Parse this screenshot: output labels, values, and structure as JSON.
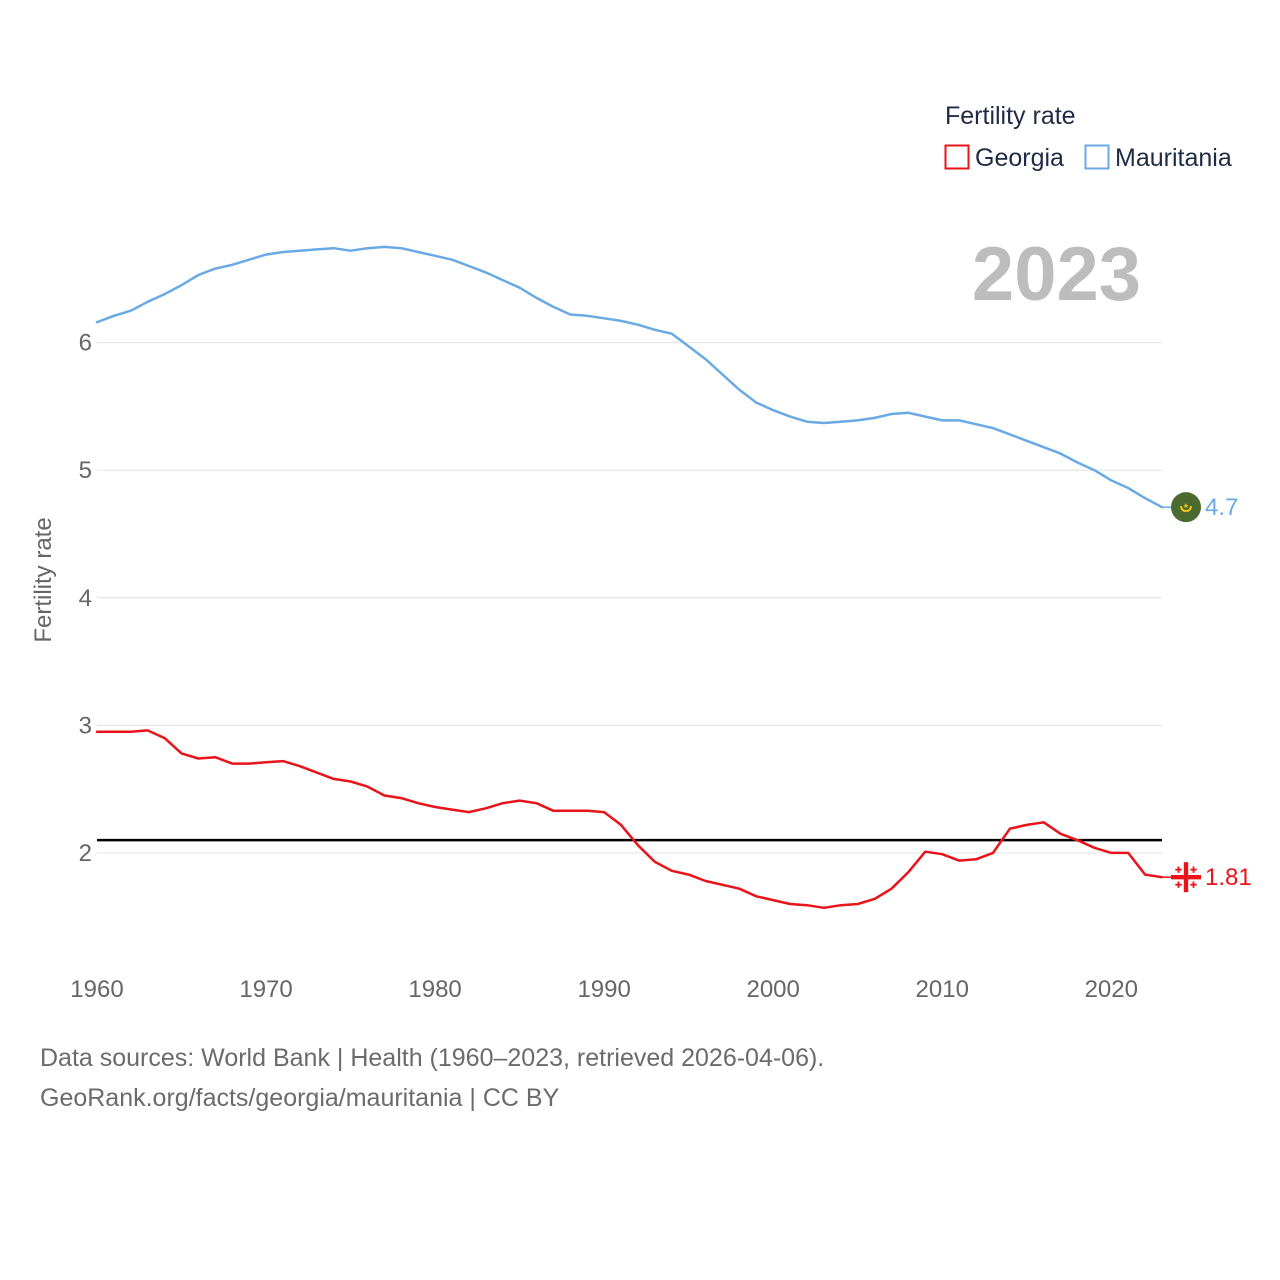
{
  "chart_data": {
    "type": "line",
    "legend_title": "Fertility rate",
    "ylabel": "Fertility rate",
    "current_year": "2023",
    "xlim": [
      1960,
      2023
    ],
    "ylim": [
      1.2,
      7.0
    ],
    "y_ticks": [
      2,
      3,
      4,
      5,
      6
    ],
    "x_ticks": [
      1960,
      1970,
      1980,
      1990,
      2000,
      2010,
      2020
    ],
    "legend_position": "top-right",
    "reference_line": {
      "value": 2.1
    },
    "x": [
      1960,
      1961,
      1962,
      1963,
      1964,
      1965,
      1966,
      1967,
      1968,
      1969,
      1970,
      1971,
      1972,
      1973,
      1974,
      1975,
      1976,
      1977,
      1978,
      1979,
      1980,
      1981,
      1982,
      1983,
      1984,
      1985,
      1986,
      1987,
      1988,
      1989,
      1990,
      1991,
      1992,
      1993,
      1994,
      1995,
      1996,
      1997,
      1998,
      1999,
      2000,
      2001,
      2002,
      2003,
      2004,
      2005,
      2006,
      2007,
      2008,
      2009,
      2010,
      2011,
      2012,
      2013,
      2014,
      2015,
      2016,
      2017,
      2018,
      2019,
      2020,
      2021,
      2022,
      2023
    ],
    "series": [
      {
        "name": "Georgia",
        "color": "#e8141a",
        "end_label": "1.81",
        "flag_icon": "georgia-flag-icon",
        "values": [
          2.95,
          2.95,
          2.95,
          2.96,
          2.9,
          2.78,
          2.74,
          2.75,
          2.7,
          2.7,
          2.71,
          2.72,
          2.68,
          2.63,
          2.58,
          2.56,
          2.52,
          2.45,
          2.43,
          2.39,
          2.36,
          2.34,
          2.32,
          2.35,
          2.39,
          2.41,
          2.39,
          2.33,
          2.33,
          2.33,
          2.32,
          2.22,
          2.06,
          1.93,
          1.86,
          1.83,
          1.78,
          1.75,
          1.72,
          1.66,
          1.63,
          1.6,
          1.59,
          1.57,
          1.59,
          1.6,
          1.64,
          1.72,
          1.85,
          2.01,
          1.99,
          1.94,
          1.95,
          2.0,
          2.19,
          2.22,
          2.24,
          2.15,
          2.1,
          2.04,
          2.0,
          2.0,
          1.83,
          1.81
        ]
      },
      {
        "name": "Mauritania",
        "color": "#6aaae4",
        "end_label": "4.7",
        "flag_icon": "mauritania-flag-icon",
        "values": [
          6.16,
          6.21,
          6.25,
          6.32,
          6.38,
          6.45,
          6.53,
          6.58,
          6.61,
          6.65,
          6.69,
          6.71,
          6.72,
          6.73,
          6.74,
          6.72,
          6.74,
          6.75,
          6.74,
          6.71,
          6.68,
          6.65,
          6.6,
          6.55,
          6.49,
          6.43,
          6.35,
          6.28,
          6.22,
          6.21,
          6.19,
          6.17,
          6.14,
          6.1,
          6.07,
          5.97,
          5.87,
          5.75,
          5.63,
          5.53,
          5.47,
          5.42,
          5.38,
          5.37,
          5.38,
          5.39,
          5.41,
          5.44,
          5.45,
          5.42,
          5.39,
          5.39,
          5.36,
          5.33,
          5.28,
          5.23,
          5.18,
          5.13,
          5.06,
          5.0,
          4.92,
          4.86,
          4.78,
          4.71
        ]
      }
    ]
  },
  "footer": {
    "source_line": "Data sources: World Bank | Health (1960–2023, retrieved 2026-04-06).",
    "attribution_line": "GeoRank.org/facts/georgia/mauritania | CC BY"
  }
}
